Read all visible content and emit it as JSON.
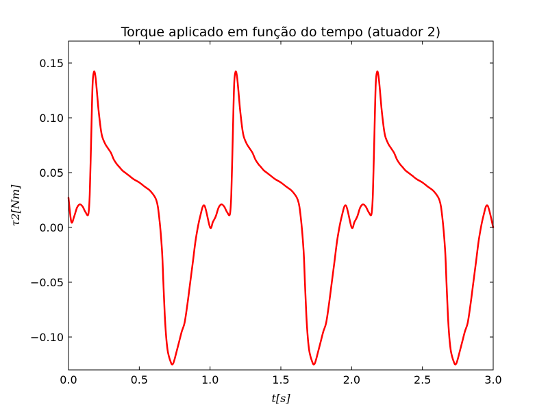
{
  "chart_data": {
    "type": "line",
    "title": "Torque aplicado em função do tempo (atuador 2)",
    "xlabel": "t[s]",
    "ylabel": "τ2[Nm]",
    "xlim": [
      0,
      3.0
    ],
    "ylim": [
      -0.13,
      0.17
    ],
    "grid": false,
    "legend": "none",
    "xticks": [
      0.0,
      0.5,
      1.0,
      1.5,
      2.0,
      2.5,
      3.0
    ],
    "xtick_labels": [
      "0.0",
      "0.5",
      "1.0",
      "1.5",
      "2.0",
      "2.5",
      "3.0"
    ],
    "yticks": [
      -0.1,
      -0.05,
      0.0,
      0.05,
      0.1,
      0.15
    ],
    "ytick_labels": [
      "−0.10",
      "−0.05",
      "0.00",
      "0.05",
      "0.10",
      "0.15"
    ],
    "period": 1.0,
    "cycles": 3,
    "series": [
      {
        "color": "#ff0000",
        "start": [
          0.0,
          0.027
        ],
        "cycle_x": [
          0.02,
          0.04,
          0.06,
          0.08,
          0.1,
          0.12,
          0.14,
          0.15,
          0.16,
          0.17,
          0.18,
          0.19,
          0.2,
          0.21,
          0.22,
          0.23,
          0.24,
          0.26,
          0.28,
          0.3,
          0.32,
          0.34,
          0.36,
          0.38,
          0.4,
          0.43,
          0.46,
          0.5,
          0.54,
          0.58,
          0.62,
          0.64,
          0.66,
          0.67,
          0.68,
          0.69,
          0.7,
          0.71,
          0.72,
          0.73,
          0.74,
          0.75,
          0.76,
          0.78,
          0.8,
          0.82,
          0.84,
          0.86,
          0.88,
          0.9,
          0.93,
          0.96,
          1.0
        ],
        "cycle_y": [
          0.005,
          0.01,
          0.018,
          0.021,
          0.019,
          0.014,
          0.012,
          0.03,
          0.08,
          0.13,
          0.142,
          0.138,
          0.125,
          0.11,
          0.098,
          0.088,
          0.082,
          0.076,
          0.072,
          0.068,
          0.062,
          0.058,
          0.055,
          0.052,
          0.05,
          0.047,
          0.044,
          0.041,
          0.037,
          0.033,
          0.025,
          0.01,
          -0.02,
          -0.05,
          -0.08,
          -0.1,
          -0.112,
          -0.118,
          -0.122,
          -0.125,
          -0.124,
          -0.12,
          -0.115,
          -0.105,
          -0.095,
          -0.087,
          -0.07,
          -0.05,
          -0.03,
          -0.01,
          0.01,
          0.02,
          0.0
        ]
      }
    ]
  }
}
